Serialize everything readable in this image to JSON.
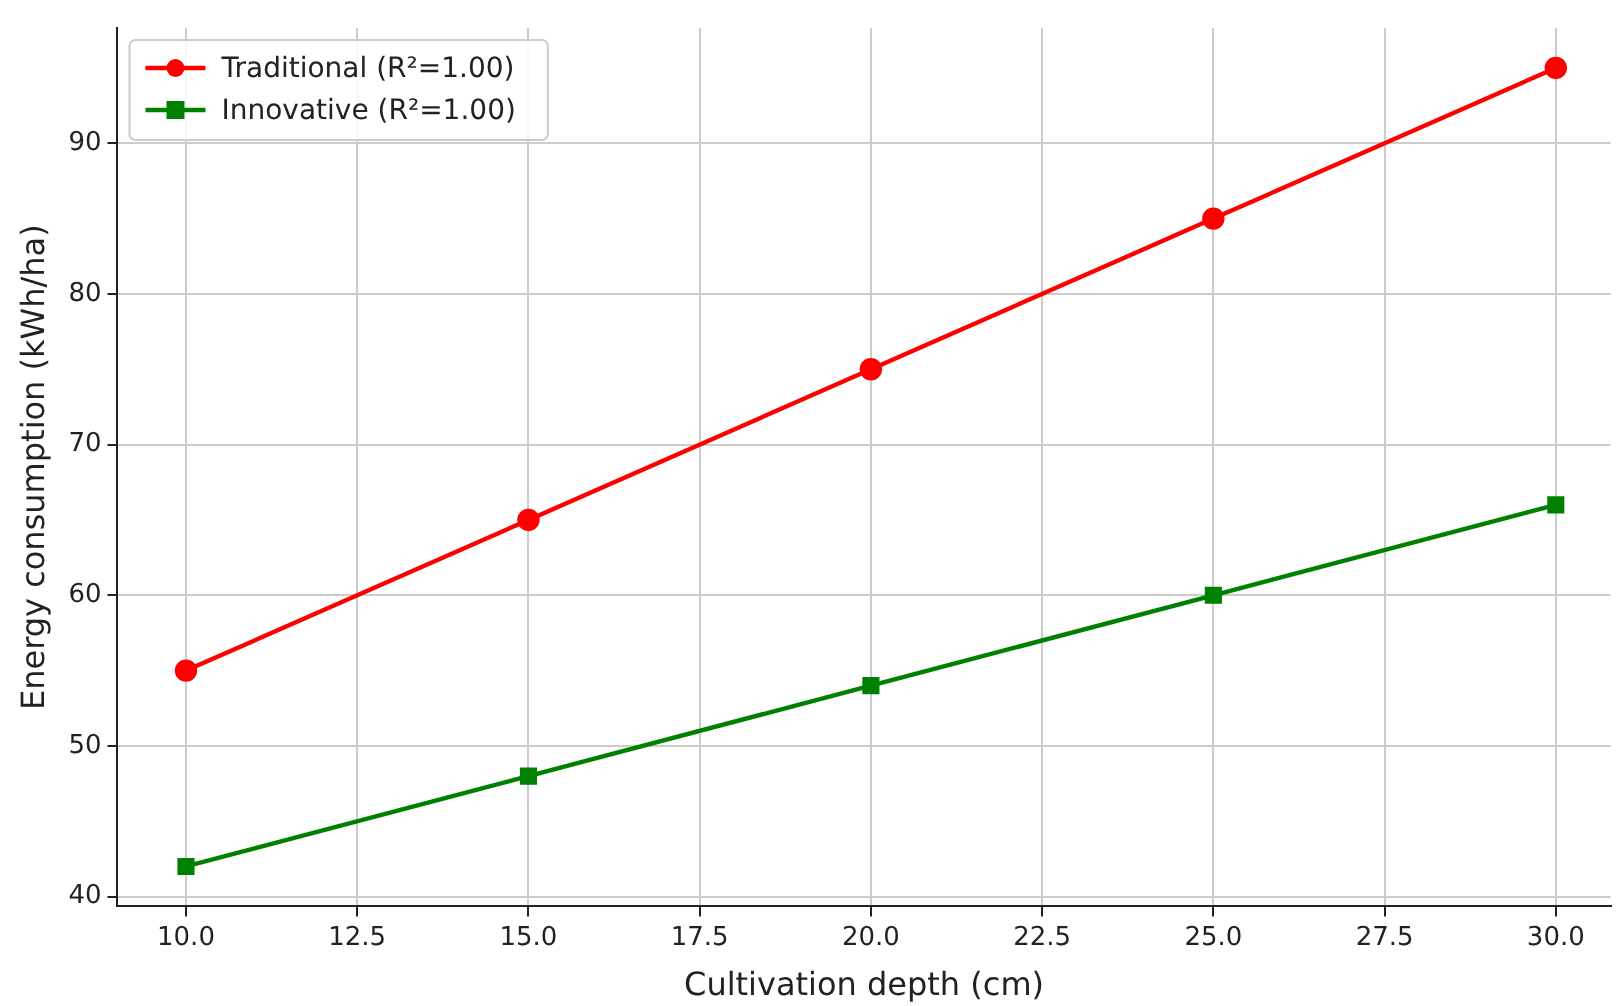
{
  "chart_data": {
    "type": "line",
    "xlabel": "Cultivation depth (cm)",
    "ylabel": "Energy consumption (kWh/ha)",
    "x": [
      10,
      15,
      20,
      25,
      30
    ],
    "series": [
      {
        "name": "Traditional (R²=1.00)",
        "color": "#ff0000",
        "marker": "circle",
        "values": [
          55,
          65,
          75,
          85,
          95
        ]
      },
      {
        "name": "Innovative (R²=1.00)",
        "color": "#008000",
        "marker": "square",
        "values": [
          42,
          48,
          54,
          60,
          66
        ]
      }
    ],
    "xlim": [
      9,
      30.8
    ],
    "xticks": [
      {
        "value": 10,
        "label": "10.0"
      },
      {
        "value": 12.5,
        "label": "12.5"
      },
      {
        "value": 15,
        "label": "15.0"
      },
      {
        "value": 17.5,
        "label": "17.5"
      },
      {
        "value": 20,
        "label": "20.0"
      },
      {
        "value": 22.5,
        "label": "22.5"
      },
      {
        "value": 25,
        "label": "25.0"
      },
      {
        "value": 27.5,
        "label": "27.5"
      },
      {
        "value": 30,
        "label": "30.0"
      }
    ],
    "ylim": [
      39.35,
      97.65
    ],
    "yticks": [
      40,
      50,
      60,
      70,
      80,
      90
    ],
    "grid": true,
    "legend": "top left",
    "line_style": "solid"
  }
}
